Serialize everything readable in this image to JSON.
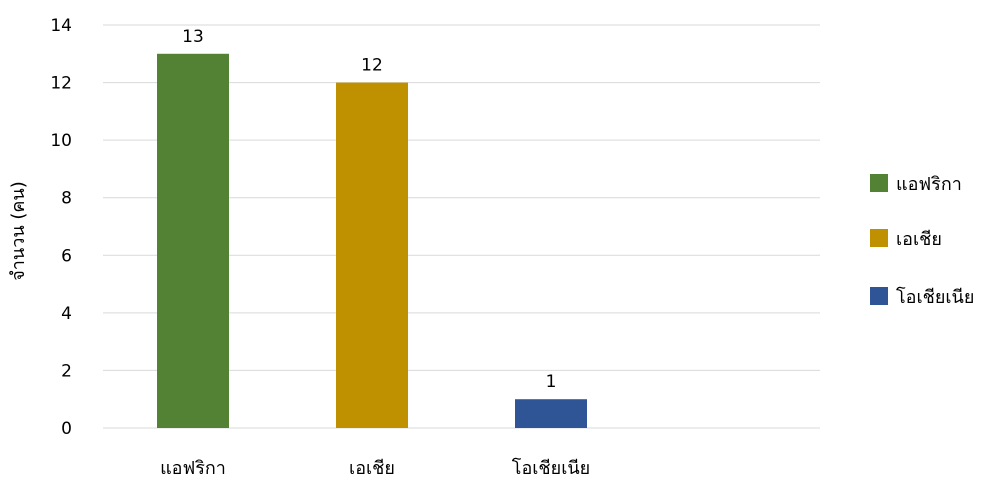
{
  "chart_data": {
    "type": "bar",
    "categories": [
      "แอฟริกา",
      "เอเชีย",
      "โอเชียเนีย"
    ],
    "values": [
      13,
      12,
      1
    ],
    "colors": [
      "#548235",
      "#BF9000",
      "#2F5597"
    ],
    "data_labels": [
      "13",
      "12",
      "1"
    ],
    "title": "",
    "xlabel": "",
    "ylabel": "จำนวน (คน)",
    "ylim": [
      0,
      14
    ],
    "yticks": [
      0,
      2,
      4,
      6,
      8,
      10,
      12,
      14
    ],
    "grid": true,
    "legend": {
      "position": "right",
      "entries": [
        "แอฟริกา",
        "เอเชีย",
        "โอเชียเนีย"
      ]
    }
  }
}
